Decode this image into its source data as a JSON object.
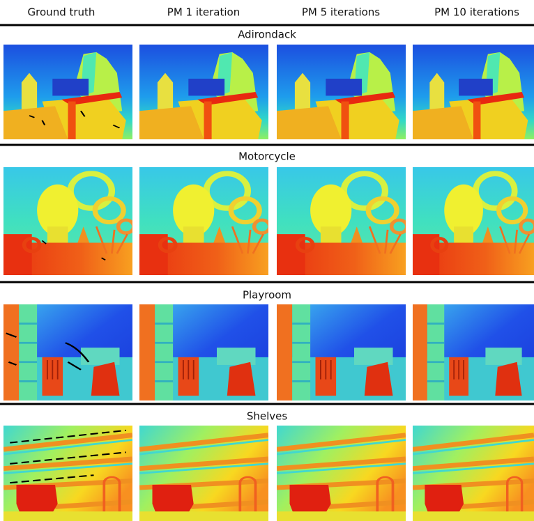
{
  "header": {
    "columns": [
      "Ground truth",
      "PM 1 iteration",
      "PM 5 iterations",
      "PM 10 iterations"
    ]
  },
  "sections": [
    {
      "title": "Adirondack"
    },
    {
      "title": "Motorcycle"
    },
    {
      "title": "Playroom"
    },
    {
      "title": "Shelves"
    }
  ]
}
